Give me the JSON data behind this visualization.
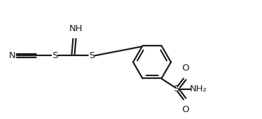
{
  "bg_color": "#ffffff",
  "line_color": "#1a1a1a",
  "line_width": 1.6,
  "font_size": 9.5,
  "figsize": [
    3.78,
    1.72
  ],
  "dpi": 100,
  "xlim": [
    0.0,
    9.5
  ],
  "ylim": [
    0.0,
    4.5
  ]
}
